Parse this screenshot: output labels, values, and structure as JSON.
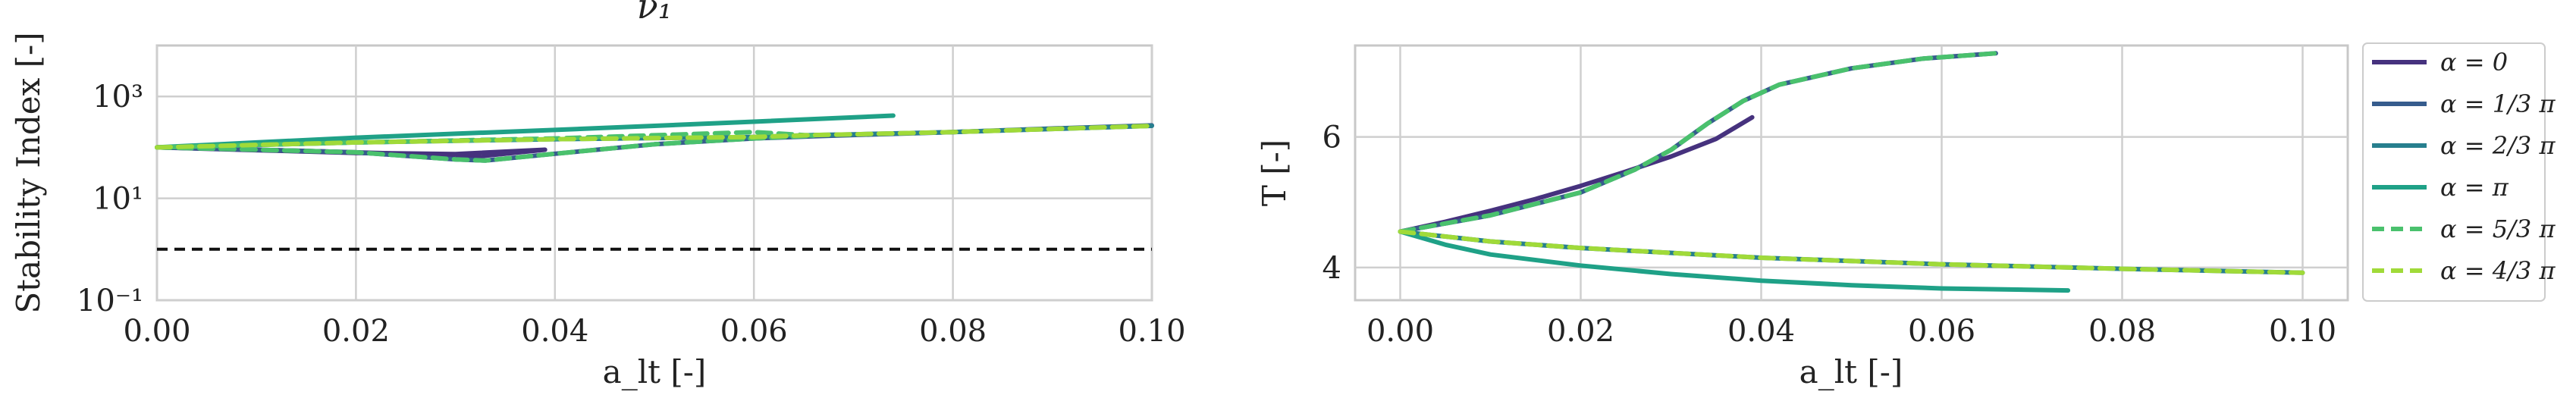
{
  "chart_data": [
    {
      "type": "line",
      "title": "ν₁",
      "xlabel": "a_lt [-]",
      "ylabel": "Stability Index [-]",
      "xlim": [
        0,
        0.1
      ],
      "ylim": [
        0.1,
        10000
      ],
      "yscale": "log",
      "grid": true,
      "x_ticks": [
        "0.00",
        "0.02",
        "0.04",
        "0.06",
        "0.08",
        "0.10"
      ],
      "y_ticks": [
        "10⁻¹",
        "10¹",
        "10³"
      ],
      "reference_line": {
        "y": 1,
        "style": "dashed",
        "color": "#111111"
      },
      "series": [
        {
          "name": "α = 0",
          "color": "#46327e",
          "dash": false,
          "points": [
            [
              0,
              100
            ],
            [
              0.01,
              88
            ],
            [
              0.02,
              78
            ],
            [
              0.03,
              74
            ],
            [
              0.039,
              90
            ],
            [
              0.03,
              60
            ],
            [
              0.025,
              75
            ],
            [
              0.015,
              85
            ],
            [
              0,
              100
            ]
          ]
        },
        {
          "name": "α = 1/3 π",
          "color": "#365c8d",
          "dash": false,
          "points": [
            [
              0,
              100
            ],
            [
              0.01,
              90
            ],
            [
              0.02,
              80
            ],
            [
              0.03,
              58
            ],
            [
              0.033,
              55
            ],
            [
              0.04,
              75
            ],
            [
              0.05,
              115
            ],
            [
              0.06,
              150
            ],
            [
              0.066,
              165
            ],
            [
              0.07,
              175
            ],
            [
              0.08,
              200
            ],
            [
              0.09,
              235
            ],
            [
              0.1,
              270
            ]
          ]
        },
        {
          "name": "α = 2/3 π",
          "color": "#277f8e",
          "dash": false,
          "points": [
            [
              0,
              100
            ],
            [
              0.02,
              125
            ],
            [
              0.04,
              145
            ],
            [
              0.06,
              160
            ],
            [
              0.066,
              175
            ],
            [
              0.07,
              180
            ],
            [
              0.08,
              200
            ],
            [
              0.09,
              230
            ],
            [
              0.1,
              265
            ]
          ]
        },
        {
          "name": "α = π",
          "color": "#1fa187",
          "dash": false,
          "points": [
            [
              0,
              100
            ],
            [
              0.01,
              125
            ],
            [
              0.02,
              155
            ],
            [
              0.03,
              185
            ],
            [
              0.04,
              220
            ],
            [
              0.05,
              265
            ],
            [
              0.06,
              320
            ],
            [
              0.074,
              420
            ]
          ]
        },
        {
          "name": "α = 5/3 π",
          "color": "#4ac16d",
          "dash": true,
          "points": [
            [
              0,
              100
            ],
            [
              0.01,
              90
            ],
            [
              0.02,
              80
            ],
            [
              0.03,
              58
            ],
            [
              0.033,
              55
            ],
            [
              0.04,
              75
            ],
            [
              0.05,
              115
            ],
            [
              0.06,
              150
            ],
            [
              0.066,
              170
            ],
            [
              0.06,
              200
            ],
            [
              0.04,
              150
            ],
            [
              0.02,
              125
            ],
            [
              0,
              100
            ]
          ]
        },
        {
          "name": "α = 4/3 π",
          "color": "#a0da39",
          "dash": true,
          "points": [
            [
              0,
              100
            ],
            [
              0.02,
              125
            ],
            [
              0.04,
              145
            ],
            [
              0.06,
              160
            ],
            [
              0.066,
              175
            ],
            [
              0.07,
              180
            ],
            [
              0.08,
              200
            ],
            [
              0.09,
              230
            ],
            [
              0.1,
              265
            ]
          ]
        }
      ]
    },
    {
      "type": "line",
      "title": "",
      "xlabel": "a_lt [-]",
      "ylabel": "T [-]",
      "xlim": [
        -0.005,
        0.105
      ],
      "ylim": [
        3.5,
        7.4
      ],
      "grid": true,
      "x_ticks": [
        "0.00",
        "0.02",
        "0.04",
        "0.06",
        "0.08",
        "0.10"
      ],
      "y_ticks": [
        "4",
        "6"
      ],
      "legend": {
        "position": "right",
        "entries": [
          "α = 0",
          "α = 1/3 π",
          "α = 2/3 π",
          "α = π",
          "α = 5/3 π",
          "α = 4/3 π"
        ]
      },
      "series": [
        {
          "name": "α = 0",
          "color": "#46327e",
          "dash": false,
          "points": [
            [
              0,
              4.55
            ],
            [
              0.005,
              4.7
            ],
            [
              0.01,
              4.87
            ],
            [
              0.015,
              5.05
            ],
            [
              0.02,
              5.25
            ],
            [
              0.025,
              5.47
            ],
            [
              0.03,
              5.7
            ],
            [
              0.035,
              5.97
            ],
            [
              0.039,
              6.3
            ]
          ]
        },
        {
          "name": "α = 1/3 π",
          "color": "#365c8d",
          "dash": false,
          "points": [
            [
              0,
              4.55
            ],
            [
              0.01,
              4.8
            ],
            [
              0.02,
              5.15
            ],
            [
              0.026,
              5.5
            ],
            [
              0.03,
              5.8
            ],
            [
              0.034,
              6.2
            ],
            [
              0.038,
              6.55
            ],
            [
              0.042,
              6.8
            ],
            [
              0.05,
              7.05
            ],
            [
              0.058,
              7.2
            ],
            [
              0.066,
              7.28
            ]
          ]
        },
        {
          "name": "α = 2/3 π",
          "color": "#277f8e",
          "dash": false,
          "points": [
            [
              0,
              4.55
            ],
            [
              0.01,
              4.4
            ],
            [
              0.02,
              4.3
            ],
            [
              0.04,
              4.15
            ],
            [
              0.06,
              4.05
            ],
            [
              0.08,
              3.98
            ],
            [
              0.1,
              3.92
            ]
          ]
        },
        {
          "name": "α = π",
          "color": "#1fa187",
          "dash": false,
          "points": [
            [
              0,
              4.55
            ],
            [
              0.005,
              4.35
            ],
            [
              0.01,
              4.2
            ],
            [
              0.02,
              4.03
            ],
            [
              0.03,
              3.9
            ],
            [
              0.04,
              3.8
            ],
            [
              0.05,
              3.73
            ],
            [
              0.06,
              3.68
            ],
            [
              0.074,
              3.65
            ]
          ]
        },
        {
          "name": "α = 5/3 π",
          "color": "#4ac16d",
          "dash": true,
          "points": [
            [
              0,
              4.55
            ],
            [
              0.01,
              4.8
            ],
            [
              0.02,
              5.15
            ],
            [
              0.026,
              5.5
            ],
            [
              0.03,
              5.8
            ],
            [
              0.034,
              6.2
            ],
            [
              0.038,
              6.55
            ],
            [
              0.042,
              6.8
            ],
            [
              0.05,
              7.05
            ],
            [
              0.058,
              7.2
            ],
            [
              0.066,
              7.28
            ]
          ]
        },
        {
          "name": "α = 4/3 π",
          "color": "#a0da39",
          "dash": true,
          "points": [
            [
              0,
              4.55
            ],
            [
              0.01,
              4.4
            ],
            [
              0.02,
              4.3
            ],
            [
              0.04,
              4.15
            ],
            [
              0.06,
              4.05
            ],
            [
              0.08,
              3.98
            ],
            [
              0.1,
              3.92
            ]
          ]
        }
      ]
    }
  ]
}
